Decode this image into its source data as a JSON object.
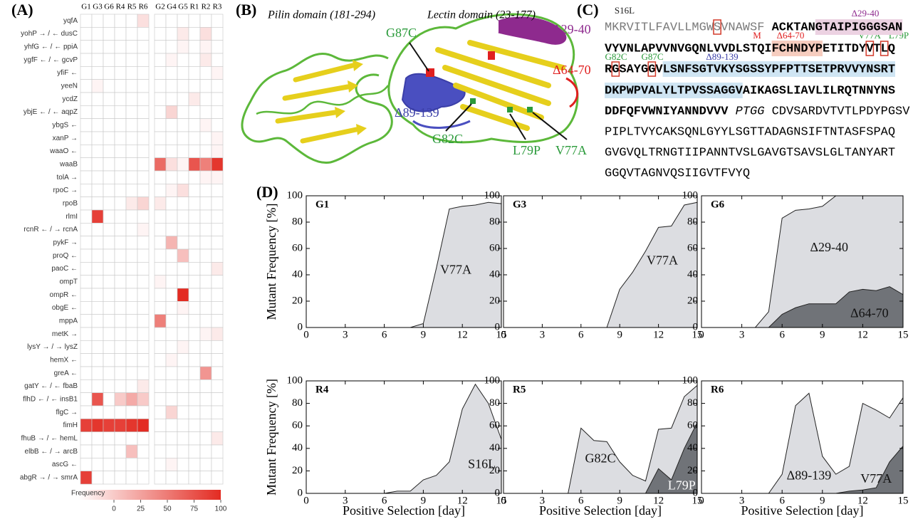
{
  "panel_labels": [
    "(A)",
    "(B)",
    "(C)",
    "(D)"
  ],
  "chart_data": [
    {
      "type": "heatmap",
      "columns": [
        "G1",
        "G3",
        "G6",
        "R4",
        "R5",
        "R6",
        "G2",
        "G4",
        "G5",
        "R1",
        "R2",
        "R3"
      ],
      "rows": [
        "yqfA",
        "yohP → / ← dusC",
        "yhfG ← / ← ppiA",
        "ygfF ← / ← gcvP",
        "yfiF ←",
        "yeeN",
        "ycdZ",
        "ybjE ← / ← aqpZ",
        "ybgS ←",
        "xanP →",
        "waaO ←",
        "waaB",
        "tolA →",
        "rpoC →",
        "rpoB",
        "rlmI",
        "rcnR ← / → rcnA",
        "pykF →",
        "proQ ←",
        "paoC ←",
        "ompT",
        "ompR ←",
        "obgE ←",
        "mppA",
        "metK →",
        "lysY → / → lysZ",
        "hemX ←",
        "greA ←",
        "gatY ← / ← fbaB",
        "flhD ← / ← insB1",
        "flgC →",
        "fimH",
        "fhuB → / ← hemL",
        "elbB ← / → arcB",
        "ascG ←",
        "abgR → / → smrA"
      ],
      "values": [
        [
          0,
          0,
          0,
          0,
          0,
          15,
          0,
          0,
          0,
          0,
          0,
          0
        ],
        [
          0,
          0,
          0,
          0,
          0,
          0,
          0,
          0,
          10,
          0,
          15,
          0
        ],
        [
          0,
          0,
          0,
          0,
          0,
          0,
          0,
          0,
          5,
          0,
          5,
          0
        ],
        [
          0,
          0,
          0,
          0,
          0,
          0,
          0,
          5,
          0,
          0,
          10,
          0
        ],
        [
          0,
          0,
          0,
          0,
          0,
          0,
          0,
          0,
          0,
          0,
          0,
          5
        ],
        [
          0,
          5,
          0,
          0,
          0,
          0,
          0,
          0,
          0,
          0,
          0,
          0
        ],
        [
          0,
          0,
          0,
          0,
          0,
          0,
          0,
          0,
          0,
          10,
          0,
          0
        ],
        [
          0,
          0,
          0,
          0,
          0,
          0,
          0,
          20,
          0,
          0,
          0,
          0
        ],
        [
          0,
          0,
          0,
          0,
          0,
          0,
          0,
          0,
          0,
          0,
          5,
          0
        ],
        [
          0,
          0,
          0,
          0,
          0,
          0,
          0,
          0,
          0,
          0,
          0,
          5
        ],
        [
          0,
          0,
          0,
          0,
          0,
          0,
          0,
          0,
          0,
          0,
          0,
          5
        ],
        [
          0,
          0,
          0,
          0,
          0,
          0,
          70,
          15,
          5,
          80,
          60,
          95
        ],
        [
          0,
          0,
          0,
          0,
          0,
          0,
          0,
          0,
          0,
          0,
          5,
          5
        ],
        [
          0,
          0,
          0,
          0,
          0,
          0,
          0,
          5,
          15,
          0,
          0,
          0
        ],
        [
          0,
          0,
          0,
          0,
          10,
          20,
          10,
          0,
          0,
          0,
          0,
          0
        ],
        [
          0,
          90,
          0,
          0,
          0,
          0,
          0,
          0,
          0,
          0,
          0,
          0
        ],
        [
          0,
          0,
          0,
          0,
          0,
          5,
          0,
          0,
          0,
          0,
          0,
          0
        ],
        [
          0,
          0,
          0,
          0,
          0,
          0,
          0,
          35,
          0,
          0,
          0,
          0
        ],
        [
          0,
          0,
          0,
          0,
          0,
          0,
          0,
          0,
          30,
          0,
          0,
          0
        ],
        [
          0,
          0,
          0,
          0,
          0,
          0,
          0,
          0,
          0,
          0,
          0,
          10
        ],
        [
          0,
          0,
          0,
          0,
          0,
          0,
          5,
          0,
          0,
          0,
          0,
          0
        ],
        [
          0,
          0,
          0,
          0,
          0,
          0,
          0,
          0,
          100,
          0,
          0,
          0
        ],
        [
          0,
          0,
          0,
          0,
          0,
          0,
          0,
          0,
          5,
          0,
          0,
          0
        ],
        [
          0,
          0,
          0,
          0,
          0,
          0,
          60,
          0,
          0,
          0,
          0,
          0
        ],
        [
          0,
          0,
          0,
          0,
          0,
          0,
          0,
          0,
          0,
          0,
          5,
          10
        ],
        [
          0,
          0,
          0,
          0,
          0,
          0,
          0,
          0,
          5,
          0,
          0,
          0
        ],
        [
          0,
          0,
          0,
          0,
          0,
          0,
          0,
          5,
          0,
          0,
          0,
          0
        ],
        [
          0,
          0,
          0,
          0,
          0,
          0,
          0,
          0,
          0,
          0,
          50,
          0
        ],
        [
          0,
          0,
          0,
          0,
          0,
          10,
          0,
          0,
          0,
          0,
          0,
          0
        ],
        [
          0,
          80,
          0,
          25,
          40,
          25,
          0,
          0,
          0,
          0,
          0,
          0
        ],
        [
          0,
          0,
          0,
          0,
          0,
          0,
          0,
          20,
          0,
          0,
          0,
          0
        ],
        [
          90,
          95,
          90,
          90,
          95,
          100,
          0,
          0,
          0,
          0,
          0,
          0
        ],
        [
          0,
          0,
          0,
          0,
          0,
          0,
          0,
          0,
          0,
          0,
          0,
          10
        ],
        [
          0,
          0,
          0,
          0,
          30,
          0,
          0,
          0,
          0,
          0,
          0,
          0
        ],
        [
          0,
          0,
          0,
          0,
          0,
          0,
          0,
          5,
          0,
          0,
          0,
          0
        ],
        [
          90,
          0,
          0,
          0,
          0,
          0,
          0,
          0,
          0,
          0,
          0,
          0
        ]
      ],
      "color": "#e32b22",
      "colorbar": {
        "label": "Frequency",
        "lim": [
          0,
          100
        ],
        "ticks": [
          0,
          25,
          50,
          75,
          100
        ]
      }
    },
    {
      "type": "area",
      "title": "G1",
      "ylabel": "Mutant Frequency [%]",
      "x": [
        0,
        1,
        2,
        3,
        4,
        5,
        6,
        7,
        8,
        9,
        10,
        11,
        12,
        13,
        14,
        15
      ],
      "series": [
        {
          "name": "V77A",
          "color": "#dcdde1",
          "values": [
            0,
            0,
            0,
            0,
            0,
            0,
            0,
            0,
            0,
            3,
            45,
            90,
            92,
            93,
            95,
            94
          ]
        }
      ],
      "xlim": [
        0,
        15
      ],
      "ylim": [
        0,
        100
      ],
      "xticks": [
        0,
        3,
        6,
        9,
        12,
        15
      ],
      "yticks": [
        0,
        20,
        40,
        60,
        80,
        100
      ]
    },
    {
      "type": "area",
      "title": "G3",
      "x": [
        0,
        1,
        2,
        3,
        4,
        5,
        6,
        7,
        8,
        9,
        10,
        11,
        12,
        13,
        14,
        15
      ],
      "series": [
        {
          "name": "V77A",
          "color": "#dcdde1",
          "values": [
            0,
            0,
            0,
            0,
            0,
            0,
            0,
            0,
            0,
            29,
            42,
            58,
            76,
            77,
            93,
            95
          ]
        }
      ],
      "xlim": [
        0,
        15
      ],
      "ylim": [
        0,
        100
      ],
      "xticks": [
        0,
        3,
        6,
        9,
        12,
        15
      ],
      "yticks": [
        0,
        20,
        40,
        60,
        80,
        100
      ]
    },
    {
      "type": "area",
      "title": "G6",
      "x": [
        0,
        1,
        2,
        3,
        4,
        5,
        6,
        7,
        8,
        9,
        10,
        11,
        12,
        13,
        14,
        15
      ],
      "series": [
        {
          "name": "Δ29-40",
          "color": "#dcdde1",
          "values": [
            0,
            0,
            0,
            0,
            0,
            12,
            83,
            89,
            90,
            92,
            100,
            100,
            100,
            100,
            100,
            100
          ]
        },
        {
          "name": "Δ64-70",
          "color": "#707378",
          "values": [
            0,
            0,
            0,
            0,
            0,
            0,
            10,
            15,
            18,
            18,
            18,
            27,
            29,
            28,
            31,
            25
          ]
        }
      ],
      "xlim": [
        0,
        15
      ],
      "ylim": [
        0,
        100
      ],
      "xticks": [
        0,
        3,
        6,
        9,
        12,
        15
      ],
      "yticks": [
        0,
        20,
        40,
        60,
        80,
        100
      ]
    },
    {
      "type": "area",
      "title": "R4",
      "ylabel": "Mutant Frequency [%]",
      "xlabel": "Positive Selection [day]",
      "x": [
        0,
        1,
        2,
        3,
        4,
        5,
        6,
        7,
        8,
        9,
        10,
        11,
        12,
        13,
        14,
        15
      ],
      "series": [
        {
          "name": "S16L",
          "color": "#dcdde1",
          "values": [
            0,
            0,
            0,
            0,
            0,
            0,
            0,
            2,
            2,
            12,
            16,
            28,
            75,
            97,
            80,
            48
          ]
        }
      ],
      "xlim": [
        0,
        15
      ],
      "ylim": [
        0,
        100
      ],
      "xticks": [
        0,
        3,
        6,
        9,
        12,
        15
      ],
      "yticks": [
        0,
        20,
        40,
        60,
        80,
        100
      ]
    },
    {
      "type": "area",
      "title": "R5",
      "xlabel": "Positive Selection [day]",
      "x": [
        0,
        1,
        2,
        3,
        4,
        5,
        6,
        7,
        8,
        9,
        10,
        11,
        12,
        13,
        14,
        15
      ],
      "series": [
        {
          "name": "G82C",
          "color": "#dcdde1",
          "values": [
            0,
            0,
            0,
            0,
            0,
            0,
            58,
            47,
            46,
            28,
            16,
            11,
            57,
            58,
            86,
            96
          ]
        },
        {
          "name": "L79P",
          "color": "#707378",
          "label_color": "#ffffff",
          "values": [
            0,
            0,
            0,
            0,
            0,
            0,
            0,
            0,
            0,
            0,
            0,
            0,
            22,
            12,
            40,
            63
          ]
        }
      ],
      "xlim": [
        0,
        15
      ],
      "ylim": [
        0,
        100
      ],
      "xticks": [
        0,
        3,
        6,
        9,
        12,
        15
      ],
      "yticks": [
        0,
        20,
        40,
        60,
        80,
        100
      ]
    },
    {
      "type": "area",
      "title": "R6",
      "xlabel": "Positive Selection [day]",
      "x": [
        0,
        1,
        2,
        3,
        4,
        5,
        6,
        7,
        8,
        9,
        10,
        11,
        12,
        13,
        14,
        15
      ],
      "series": [
        {
          "name": "Δ89-139",
          "color": "#dcdde1",
          "values": [
            0,
            0,
            0,
            0,
            0,
            0,
            17,
            78,
            89,
            33,
            17,
            24,
            80,
            74,
            67,
            85
          ]
        },
        {
          "name": "V77A",
          "color": "#707378",
          "values": [
            0,
            0,
            0,
            0,
            0,
            0,
            0,
            0,
            0,
            0,
            0,
            2,
            3,
            5,
            28,
            42
          ]
        }
      ],
      "xlim": [
        0,
        15
      ],
      "ylim": [
        0,
        100
      ],
      "xticks": [
        0,
        3,
        6,
        9,
        12,
        15
      ],
      "yticks": [
        0,
        20,
        40,
        60,
        80,
        100
      ]
    }
  ],
  "structure": {
    "domains": [
      "Pilin domain (181-294)",
      "Lectin domain (23-177)"
    ],
    "labels": [
      {
        "text": "G87C",
        "color": "#2a9a3a"
      },
      {
        "text": "Δ29-40",
        "color": "#8e2a8e"
      },
      {
        "text": "Δ64-70",
        "color": "#e02020"
      },
      {
        "text": "Δ89-139",
        "color": "#3b3fa8"
      },
      {
        "text": "G82C",
        "color": "#2a9a3a"
      },
      {
        "text": "L79P",
        "color": "#2a9a3a"
      },
      {
        "text": "V77A",
        "color": "#2a9a3a"
      }
    ]
  },
  "sequence": {
    "box_color": "#d23a2a",
    "lines": [
      [
        {
          "text": "MKRVITLFAVLLMGW",
          "style": "grey"
        },
        {
          "text": "S",
          "style": "grey",
          "box": true
        },
        {
          "text": "VNAWSF",
          "style": "grey"
        },
        {
          "text": " ACKTAN",
          "style": "bold"
        },
        {
          "text": "GTAIPIGGGSAN",
          "style": "bold",
          "highlight": "#ecd2e2"
        }
      ],
      [
        {
          "text": "VYVNLAPVVNVGQNLVVDLSTQI",
          "style": "bold"
        },
        {
          "text": "FCHNDYP",
          "style": "bold",
          "highlight": "#f6cdbf"
        },
        {
          "text": "ETITDY",
          "style": "bold"
        },
        {
          "text": "V",
          "style": "bold",
          "box": true
        },
        {
          "text": "T",
          "style": "bold"
        },
        {
          "text": "L",
          "style": "bold",
          "box": true
        },
        {
          "text": "Q",
          "style": "bold"
        }
      ],
      [
        {
          "text": "R",
          "style": "bold"
        },
        {
          "text": "G",
          "style": "bold",
          "box": true
        },
        {
          "text": "SAYG",
          "style": "bold"
        },
        {
          "text": "G",
          "style": "bold",
          "box": true
        },
        {
          "text": "V",
          "style": "bold"
        },
        {
          "text": "LSNFSGTVKYSGSSYPFPTTSETPRVVYNSRT",
          "style": "bold",
          "highlight": "#cfe5f3"
        }
      ],
      [
        {
          "text": "DKPWPVALYLTPVSSAGGV",
          "style": "bold",
          "highlight": "#cfe5f3"
        },
        {
          "text": "AIKAGSLIAVLILRQTNNYNS",
          "style": "bold"
        }
      ],
      [
        {
          "text": "DDFQFVWNIYANNDVVV",
          "style": "bold"
        },
        {
          "text": " PTGG",
          "style": "italic"
        },
        {
          "text": " CDVSARDVTVTLPDYPGSV",
          "style": "normal"
        }
      ],
      [
        {
          "text": "PIPLTVYCAKSQNLGYYLSGTTADAGNSIFTNTASFSPAQ",
          "style": "normal"
        }
      ],
      [
        {
          "text": "GVGVQLTRNGTIIPANNTVSLGAVGTSAVSLGLTANYART",
          "style": "normal"
        }
      ],
      [
        {
          "text": "GGQVTAGNVQSIIGVTFVYQ",
          "style": "normal"
        }
      ]
    ],
    "annotations": [
      {
        "text": "S16L",
        "color": "#222222"
      },
      {
        "text": "Δ29-40",
        "color": "#8e2a8e"
      },
      {
        "text": "M",
        "color": "#e02020"
      },
      {
        "text": "Δ64-70",
        "color": "#e02020"
      },
      {
        "text": "V77A",
        "color": "#2a9a3a"
      },
      {
        "text": "L79P",
        "color": "#2a9a3a"
      },
      {
        "text": "G82C",
        "color": "#2a9a3a"
      },
      {
        "text": "G87C",
        "color": "#2a9a3a"
      },
      {
        "text": "Δ89-139",
        "color": "#3b3fa8"
      }
    ]
  }
}
